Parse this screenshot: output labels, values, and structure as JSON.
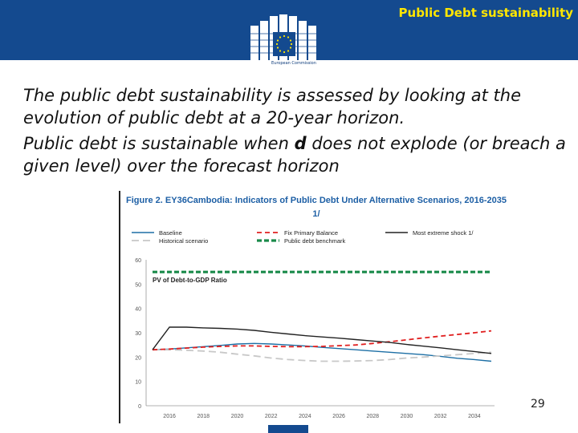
{
  "header": {
    "title": "Public Debt sustainability",
    "logo_caption": "European Commission",
    "colors": {
      "band": "#144a8f",
      "title": "#ffe600"
    }
  },
  "body": {
    "para1": "The public debt sustainability is assessed by looking at the evolution of public debt at a 20-year horizon.",
    "para2_before": "Public debt is sustainable when ",
    "para2_var": "d",
    "para2_after": " does not explode (or breach a given level) over the forecast horizon"
  },
  "figure": {
    "title": "Figure 2. EY36Cambodia: Indicators of Public Debt Under Alternative Scenarios, 2016-2035 1/"
  },
  "page_number": "29",
  "chart_data": {
    "type": "line",
    "title": "Figure 2. EY36Cambodia: Indicators of Public Debt Under Alternative Scenarios, 2016-2035 1/",
    "subtitle": "PV of Debt-to-GDP Ratio",
    "xlabel": "",
    "ylabel": "",
    "ylim": [
      0,
      60
    ],
    "yticks": [
      0,
      10,
      20,
      30,
      40,
      50,
      60
    ],
    "xticks": [
      "2016",
      "2018",
      "2020",
      "2022",
      "2024",
      "2026",
      "2028",
      "2030",
      "2032",
      "2034"
    ],
    "x": [
      2015,
      2016,
      2017,
      2018,
      2019,
      2020,
      2021,
      2022,
      2023,
      2024,
      2025,
      2026,
      2027,
      2028,
      2029,
      2030,
      2031,
      2032,
      2033,
      2034,
      2035
    ],
    "grid": false,
    "legend_position": "top",
    "series": [
      {
        "name": "Baseline",
        "color": "#1d6fa5",
        "dash": "solid",
        "values": [
          23,
          23.3,
          23.8,
          24.3,
          24.8,
          25.4,
          25.6,
          25.4,
          25,
          24.6,
          24,
          23.5,
          23,
          22.5,
          22,
          21.5,
          21,
          20.3,
          19.5,
          19,
          18.3
        ]
      },
      {
        "name": "Historical scenario",
        "color": "#c8c8c8",
        "dash": "long",
        "values": [
          23,
          23,
          22.8,
          22.5,
          22,
          21.2,
          20.5,
          19.6,
          19,
          18.6,
          18.3,
          18.3,
          18.4,
          18.6,
          19,
          19.6,
          20,
          20.5,
          21,
          21.5,
          22
        ]
      },
      {
        "name": "Fix Primary Balance",
        "color": "#e02020",
        "dash": "medium",
        "values": [
          23,
          23.3,
          23.7,
          24.1,
          24.4,
          24.6,
          24.6,
          24.4,
          24.3,
          24.3,
          24.4,
          24.7,
          25,
          25.6,
          26.3,
          27.1,
          27.9,
          28.6,
          29.3,
          30,
          30.8
        ]
      },
      {
        "name": "Most extreme shock  1/",
        "color": "#222222",
        "dash": "solid",
        "values": [
          23,
          32.3,
          32.3,
          32,
          31.8,
          31.5,
          31,
          30.2,
          29.5,
          28.8,
          28.3,
          27.8,
          27.2,
          26.6,
          26,
          25.2,
          24.5,
          23.8,
          23,
          22.3,
          21.5
        ]
      },
      {
        "name": "Public debt benchmark",
        "color": "#1a8a4a",
        "dash": "thick",
        "values": [
          55,
          55,
          55,
          55,
          55,
          55,
          55,
          55,
          55,
          55,
          55,
          55,
          55,
          55,
          55,
          55,
          55,
          55,
          55,
          55,
          55
        ]
      }
    ]
  }
}
